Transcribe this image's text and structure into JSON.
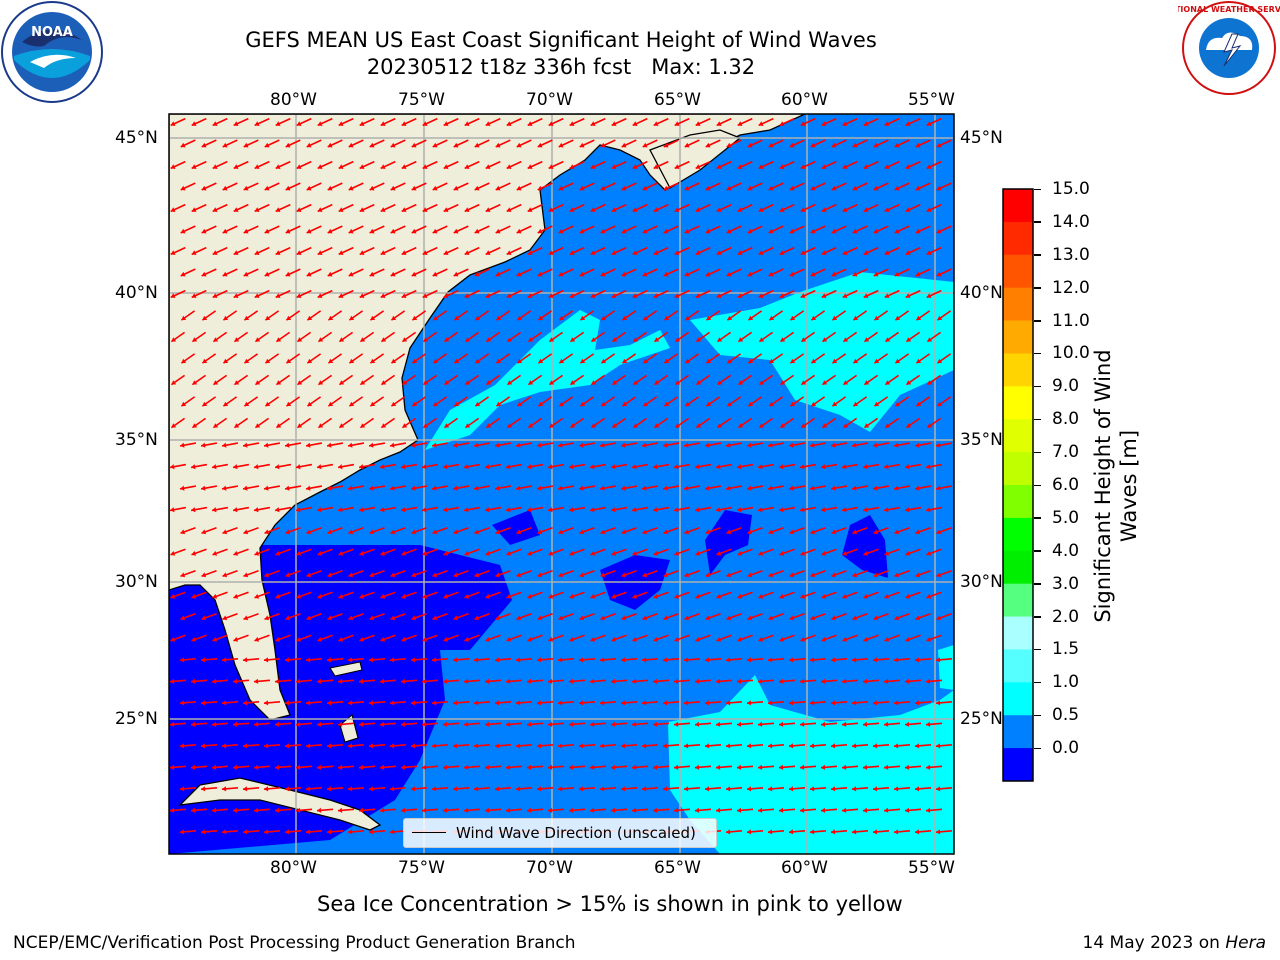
{
  "header": {
    "title_line1": "GEFS MEAN US East Coast Significant Height of Wind Waves",
    "title_line2": "20230512 t18z 336h fcst   Max: 1.32"
  },
  "logos": {
    "left": {
      "name": "noaa-logo",
      "text": "NOAA"
    },
    "right": {
      "name": "nws-logo",
      "text": "NATIONAL WEATHER SERVICE"
    }
  },
  "map": {
    "lon_labels": [
      "80°W",
      "75°W",
      "70°W",
      "65°W",
      "60°W",
      "55°W"
    ],
    "lat_labels": [
      "45°N",
      "40°N",
      "35°N",
      "30°N",
      "25°N"
    ],
    "legend_label": "Wind Wave Direction (unscaled)",
    "colors": {
      "land": "#efeedb",
      "ocean_mid": "#0080ff",
      "ocean_low": "#0000ff",
      "ocean_high": "#00ffff",
      "arrow": "#ff0000",
      "grid": "#b0b0b0"
    }
  },
  "colorbar": {
    "label": "Significant Height of Wind Waves [m]",
    "ticks": [
      "15.0",
      "14.0",
      "13.0",
      "12.0",
      "11.0",
      "10.0",
      "9.0",
      "8.0",
      "7.0",
      "6.0",
      "5.0",
      "4.0",
      "3.0",
      "2.0",
      "1.5",
      "1.0",
      "0.5",
      "0.0"
    ],
    "bands": [
      "#ff0000",
      "#ff2a00",
      "#ff5500",
      "#ff8000",
      "#ffaa00",
      "#ffd400",
      "#ffff00",
      "#e0ff00",
      "#bfff00",
      "#80ff00",
      "#00ff00",
      "#00ee00",
      "#55ff7f",
      "#aaffff",
      "#55ffff",
      "#00ffff",
      "#0080ff",
      "#0000ff"
    ]
  },
  "notes": {
    "sea_ice": "Sea Ice Concentration > 15% is shown in pink to yellow"
  },
  "footer": {
    "left": "NCEP/EMC/Verification Post Processing Product Generation Branch",
    "right_prefix": "14 May 2023 on ",
    "right_machine": "Hera"
  }
}
